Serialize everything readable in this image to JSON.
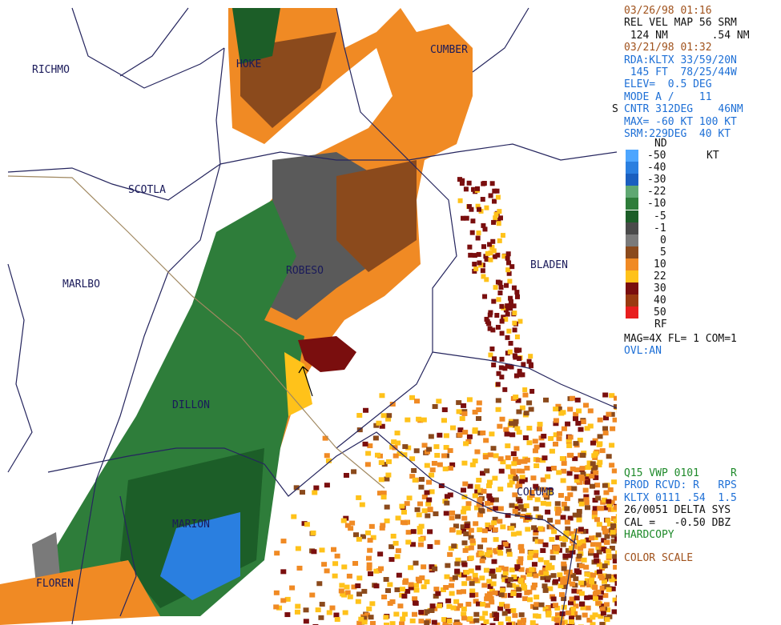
{
  "map": {
    "counties": [
      "RICHMO",
      "HOKE",
      "CUMBER",
      "SCOTLA",
      "MARLBO",
      "ROBESO",
      "BLADEN",
      "DILLON",
      "MARION",
      "FLOREN",
      "COLUMB"
    ]
  },
  "header": {
    "lines": [
      "03/26/98 01:16",
      "REL VEL MAP 56 SRM",
      " 124 NM       .54 NM",
      "03/21/98 01:32",
      "RDA:KLTX 33/59/20N",
      " 145 FT  78/25/44W",
      "ELEV=  0.5 DEG",
      "MODE A /    11"
    ],
    "marker": "S",
    "tail": [
      "CNTR 312DEG    46NM",
      "MAX= -60 KT 100 KT",
      "SRM:229DEG  40 KT"
    ]
  },
  "legend": {
    "top": "ND",
    "unit": "KT",
    "bottom": "RF",
    "rows": [
      {
        "label": "-50",
        "color": "#4da6ff"
      },
      {
        "label": "-40",
        "color": "#2a7fe0"
      },
      {
        "label": "-30",
        "color": "#1a5fbf"
      },
      {
        "label": "-22",
        "color": "#5fa872"
      },
      {
        "label": "-10",
        "color": "#2e7d3a"
      },
      {
        "label": "-5",
        "color": "#1c5e28"
      },
      {
        "label": "-1",
        "color": "#4a4a4a"
      },
      {
        "label": "0",
        "color": "#7a7a7a"
      },
      {
        "label": "5",
        "color": "#8b4a1c"
      },
      {
        "label": "10",
        "color": "#f08a24"
      },
      {
        "label": "22",
        "color": "#ffc21a"
      },
      {
        "label": "30",
        "color": "#7a0e0e"
      },
      {
        "label": "40",
        "color": "#9a3a10"
      },
      {
        "label": "50",
        "color": "#e81e1e"
      }
    ]
  },
  "status": {
    "lines": [
      "MAG=4X FL= 1 COM=1",
      "OVL:AN"
    ]
  },
  "footer": {
    "lines": [
      "Q15 VWP 0101     R",
      "PROD RCVD: R   RPS",
      "KLTX 0111 .54  1.5",
      "26/0051 DELTA SYS",
      "CAL =   -0.50 DBZ",
      "HARDCOPY",
      "COLOR SCALE"
    ]
  }
}
